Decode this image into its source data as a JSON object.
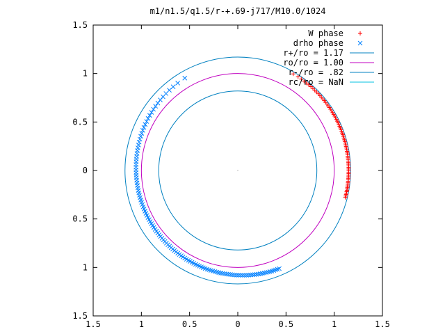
{
  "chart_data": {
    "type": "scatter",
    "title": "m1/n1.5/q1.5/r-+.69-j717/M10.0/1024",
    "xlim": [
      -1.5,
      1.5
    ],
    "ylim": [
      -1.5,
      1.5
    ],
    "x_ticks": [
      -1.5,
      -1,
      -0.5,
      0,
      0.5,
      1,
      1.5
    ],
    "x_tick_labels": [
      "1.5",
      "1",
      "0.5",
      "0",
      "0.5",
      "1",
      "1.5"
    ],
    "y_ticks": [
      1.5,
      1,
      0.5,
      0,
      -0.5,
      -1,
      -1.5
    ],
    "y_tick_labels": [
      "1.5",
      "1",
      "0.5",
      "0",
      "0.5",
      "1",
      "1.5"
    ],
    "grid": false,
    "legend_position": "top-right",
    "series": [
      {
        "name": "W phase",
        "kind": "points",
        "marker": "+",
        "color": "#ff0000",
        "arc": {
          "radius": 1.15,
          "start_deg": 60,
          "end_deg": -14,
          "count": 75
        }
      },
      {
        "name": "drho phase",
        "kind": "points",
        "marker": "x",
        "color": "#0080ff",
        "arc": {
          "radius": 1.05,
          "start_deg": 120,
          "end_deg": 293,
          "count": 125,
          "spiral_end_radius": 1.15
        }
      },
      {
        "name": "r+/ro = 1.17",
        "kind": "circle",
        "radius": 1.17,
        "color": "#0080c0"
      },
      {
        "name": "ro/ro = 1.00",
        "kind": "circle",
        "radius": 1.0,
        "color": "#c000c0"
      },
      {
        "name": "r-/ro = .82",
        "kind": "circle",
        "radius": 0.82,
        "color": "#0080c0"
      },
      {
        "name": "rc/ro = NaN",
        "kind": "circle",
        "radius": null,
        "color": "#00c0e0"
      }
    ]
  }
}
